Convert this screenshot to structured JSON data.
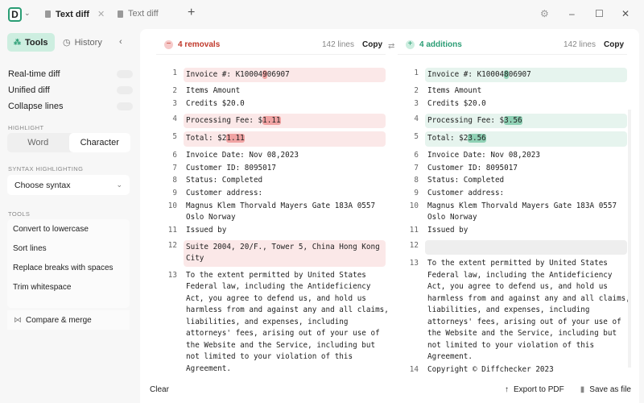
{
  "app": {
    "logo": "D",
    "tabs": [
      {
        "label": "Text diff",
        "active": true
      },
      {
        "label": "Text diff",
        "active": false
      }
    ]
  },
  "sidebar": {
    "tools_tab": "Tools",
    "history_tab": "History",
    "toggles": [
      {
        "label": "Real-time diff",
        "on": false
      },
      {
        "label": "Unified diff",
        "on": false
      },
      {
        "label": "Collapse lines",
        "on": false
      }
    ],
    "highlight_label": "HIGHLIGHT",
    "highlight_options": [
      "Word",
      "Character"
    ],
    "highlight_selected": "Character",
    "syntax_label": "SYNTAX HIGHLIGHTING",
    "syntax_value": "Choose syntax",
    "tools_label": "TOOLS",
    "tools": [
      "Convert to lowercase",
      "Sort lines",
      "Replace breaks with spaces",
      "Trim whitespace"
    ],
    "compare_merge": "Compare & merge"
  },
  "left": {
    "summary": "4 removals",
    "lines": "142 lines",
    "copy": "Copy"
  },
  "right": {
    "summary": "4 additions",
    "lines": "142 lines",
    "copy": "Copy"
  },
  "colors": {
    "removal_bg": "#fbe8e8",
    "removal_hl": "#f0a3a3",
    "addition_bg": "#e6f4ee",
    "addition_hl": "#8fd1b5",
    "accent": "#2a9d74",
    "removal_text": "#c0392b"
  },
  "left_rows": [
    {
      "n": "1",
      "ch": true,
      "segs": [
        [
          "Invoice #: K10004",
          0
        ],
        [
          "9",
          1
        ],
        [
          "06907",
          0
        ]
      ]
    },
    {
      "n": "2",
      "segs": [
        [
          "Items Amount",
          0
        ]
      ]
    },
    {
      "n": "3",
      "segs": [
        [
          "Credits $20.0",
          0
        ]
      ]
    },
    {
      "n": "4",
      "ch": true,
      "segs": [
        [
          "Processing Fee: $",
          0
        ],
        [
          "1.11",
          1
        ]
      ]
    },
    {
      "n": "5",
      "ch": true,
      "segs": [
        [
          "Total: $2",
          0
        ],
        [
          "1.11",
          1
        ]
      ]
    },
    {
      "n": "6",
      "segs": [
        [
          "Invoice Date: Nov 08,2023",
          0
        ]
      ]
    },
    {
      "n": "7",
      "segs": [
        [
          "Customer ID: 8095017",
          0
        ]
      ]
    },
    {
      "n": "8",
      "segs": [
        [
          "Status: Completed",
          0
        ]
      ]
    },
    {
      "n": "9",
      "segs": [
        [
          "Customer address:",
          0
        ]
      ]
    },
    {
      "n": "10",
      "segs": [
        [
          "Magnus Klem Thorvald Mayers Gate 183A 0557\nOslo Norway",
          0
        ]
      ]
    },
    {
      "n": "11",
      "segs": [
        [
          "Issued by",
          0
        ]
      ]
    },
    {
      "n": "12",
      "ch": true,
      "segs": [
        [
          "Suite 2004, 20/F., Tower 5, China Hong Kong\nCity",
          0
        ]
      ]
    },
    {
      "n": "13",
      "segs": [
        [
          "To the extent permitted by United States\nFederal law, including the Antideficiency\nAct, you agree to defend us, and hold us\nharmless from and against any and all claims,\nliabilities, and expenses, including\nattorneys' fees, arising out of your use of\nthe Website and the Service, including but\nnot limited to your violation of this\nAgreement.",
          0
        ]
      ]
    },
    {
      "n": "14",
      "segs": [
        [
          "Copyright © Diffchecker 2023",
          0
        ]
      ]
    }
  ],
  "right_rows": [
    {
      "n": "1",
      "ch": true,
      "segs": [
        [
          "Invoice #: K10004",
          0
        ],
        [
          "8",
          1
        ],
        [
          "06907",
          0
        ]
      ]
    },
    {
      "n": "2",
      "segs": [
        [
          "Items Amount",
          0
        ]
      ]
    },
    {
      "n": "3",
      "segs": [
        [
          "Credits $20.0",
          0
        ]
      ]
    },
    {
      "n": "4",
      "ch": true,
      "segs": [
        [
          "Processing Fee: $",
          0
        ],
        [
          "3.56",
          1
        ]
      ]
    },
    {
      "n": "5",
      "ch": true,
      "segs": [
        [
          "Total: $2",
          0
        ],
        [
          "3.56",
          1
        ]
      ]
    },
    {
      "n": "6",
      "segs": [
        [
          "Invoice Date: Nov 08,2023",
          0
        ]
      ]
    },
    {
      "n": "7",
      "segs": [
        [
          "Customer ID: 8095017",
          0
        ]
      ]
    },
    {
      "n": "8",
      "segs": [
        [
          "Status: Completed",
          0
        ]
      ]
    },
    {
      "n": "9",
      "segs": [
        [
          "Customer address:",
          0
        ]
      ]
    },
    {
      "n": "10",
      "segs": [
        [
          "Magnus Klem Thorvald Mayers Gate 183A 0557\nOslo Norway",
          0
        ]
      ]
    },
    {
      "n": "11",
      "segs": [
        [
          "Issued by",
          0
        ]
      ]
    },
    {
      "n": "12",
      "empty": true,
      "segs": [
        [
          "\n",
          0
        ]
      ]
    },
    {
      "n": "13",
      "segs": [
        [
          "To the extent permitted by United States\nFederal law, including the Antideficiency\nAct, you agree to defend us, and hold us\nharmless from and against any and all claims,\nliabilities, and expenses, including\nattorneys' fees, arising out of your use of\nthe Website and the Service, including but\nnot limited to your violation of this\nAgreement.",
          0
        ]
      ]
    },
    {
      "n": "14",
      "segs": [
        [
          "Copyright © Diffchecker 2023",
          0
        ]
      ]
    }
  ],
  "footer": {
    "clear": "Clear",
    "export": "Export to PDF",
    "save": "Save as file"
  }
}
